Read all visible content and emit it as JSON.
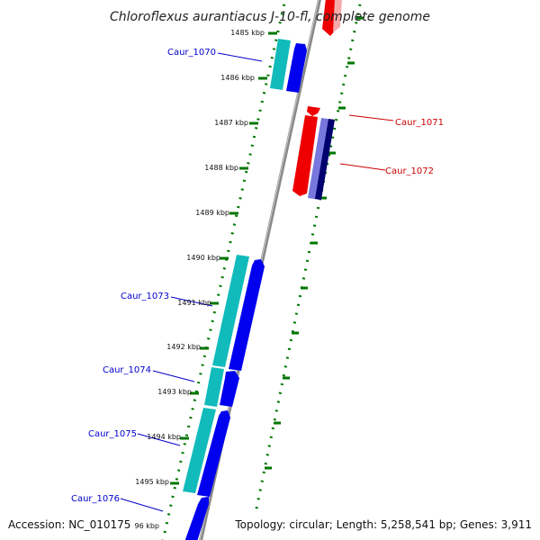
{
  "title": "Chloroflexus aurantiacus J-10-fl, complete genome",
  "footer": {
    "accession": "Accession: NC_010175",
    "summary": "Topology: circular; Length: 5,258,541 bp; Genes: 3,911"
  },
  "colors": {
    "forward_gene": "#0000ee",
    "forward_cds": "#11bbbb",
    "reverse_gene": "#ee0000",
    "reverse_cds": "#7777dd",
    "reverse_cds_dark": "#00006e",
    "ticks": "#007700",
    "backbone": "#888888",
    "forward_label": "#0000cc",
    "reverse_label": "#cc0000"
  },
  "ticks": [
    {
      "label": "1485 kbp"
    },
    {
      "label": "1486 kbp"
    },
    {
      "label": "1487 kbp"
    },
    {
      "label": "1488 kbp"
    },
    {
      "label": "1489 kbp"
    },
    {
      "label": "1490 kbp"
    },
    {
      "label": "1491 kbp"
    },
    {
      "label": "1492 kbp"
    },
    {
      "label": "1493 kbp"
    },
    {
      "label": "1494 kbp"
    },
    {
      "label": "1495 kbp"
    },
    {
      "label": "96 kbp"
    }
  ],
  "genes": [
    {
      "name": "Caur_1070",
      "strand": "forward"
    },
    {
      "name": "Caur_1071",
      "strand": "reverse"
    },
    {
      "name": "Caur_1072",
      "strand": "reverse"
    },
    {
      "name": "Caur_1073",
      "strand": "forward"
    },
    {
      "name": "Caur_1074",
      "strand": "forward"
    },
    {
      "name": "Caur_1075",
      "strand": "forward"
    },
    {
      "name": "Caur_1076",
      "strand": "forward"
    }
  ]
}
